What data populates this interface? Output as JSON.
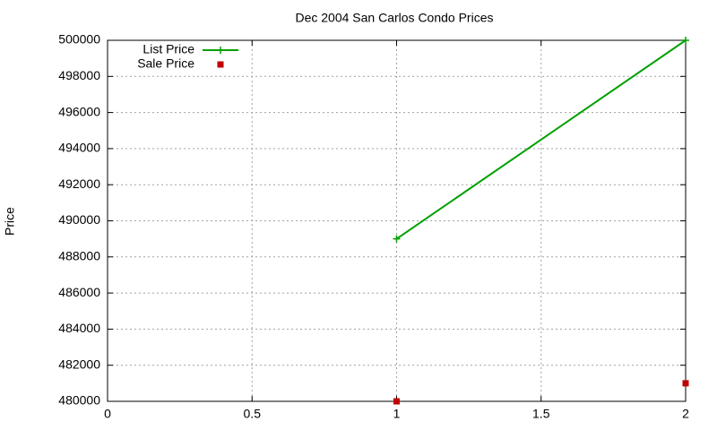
{
  "chart_data": {
    "type": "line",
    "title": "Dec 2004 San Carlos Condo Prices",
    "y_label": "Price",
    "x": [
      1,
      2
    ],
    "series": [
      {
        "name": "List Price",
        "color": "#00a000",
        "style": "linespoints",
        "values": [
          489000,
          500000
        ]
      },
      {
        "name": "Sale Price",
        "color": "#c00000",
        "style": "points",
        "values": [
          480000,
          481000
        ]
      }
    ],
    "xlim": [
      0,
      2
    ],
    "xticks": [
      0,
      0.5,
      1,
      1.5,
      2
    ],
    "ylim": [
      480000,
      500000
    ],
    "yticks": [
      480000,
      482000,
      484000,
      486000,
      488000,
      490000,
      492000,
      494000,
      496000,
      498000,
      500000
    ],
    "grid": true,
    "legend": "top-left"
  }
}
